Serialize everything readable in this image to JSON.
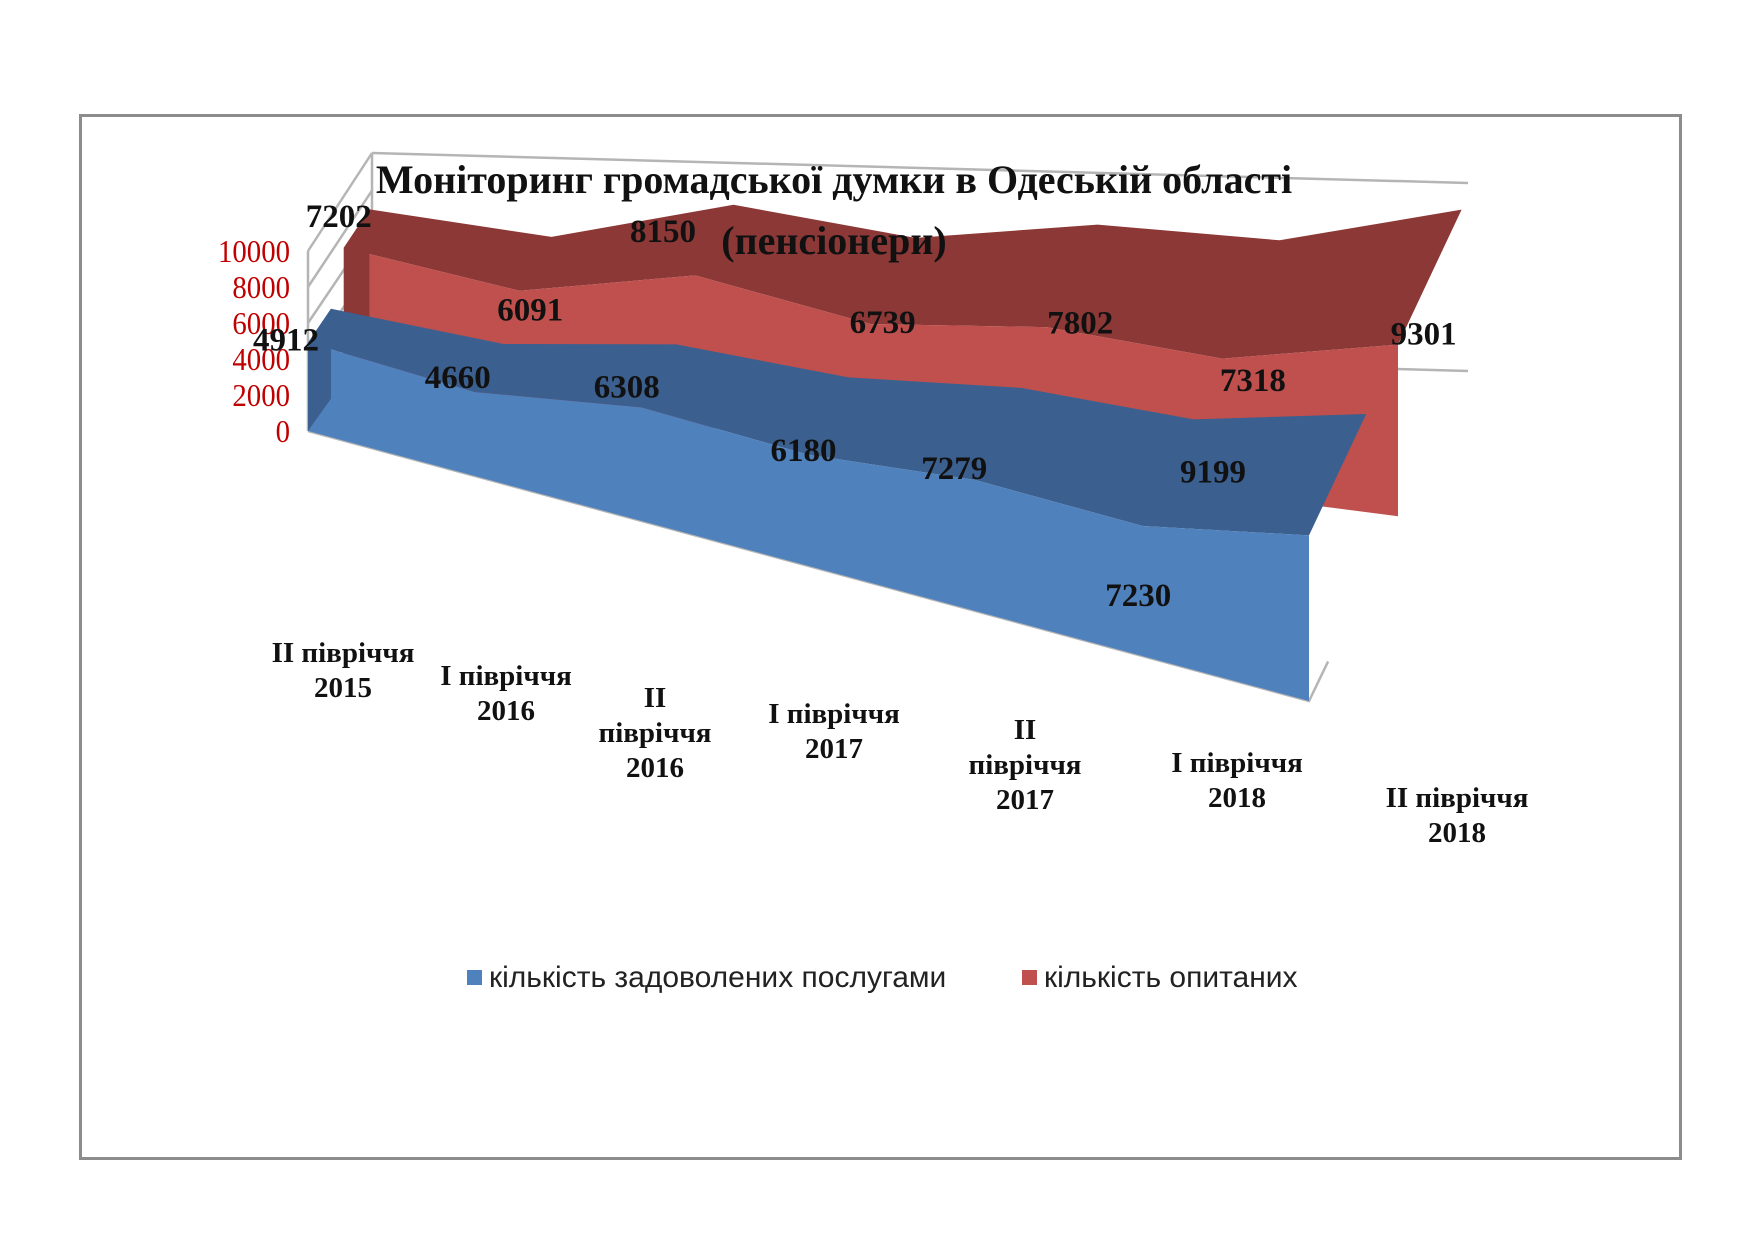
{
  "chart_data": {
    "type": "area",
    "title_lines": [
      "Моніторинг громадської думки в Одеській області",
      "(пенсіонери)"
    ],
    "categories": [
      [
        "II півріччя",
        "2015"
      ],
      [
        "I півріччя",
        "2016"
      ],
      [
        "II",
        "півріччя",
        "2016"
      ],
      [
        "I півріччя",
        "2017"
      ],
      [
        "II",
        "півріччя",
        "2017"
      ],
      [
        "I півріччя",
        "2018"
      ],
      [
        "II півріччя",
        "2018"
      ]
    ],
    "series": [
      {
        "name": "кількість задоволених послугами",
        "color": "#4f81bd",
        "top_color": "#3b5f8f",
        "values": [
          4912,
          4660,
          6308,
          6180,
          7279,
          7230,
          9199
        ]
      },
      {
        "name": "кількість опитаних",
        "color": "#c0504d",
        "top_color": "#8c3836",
        "values": [
          7202,
          6091,
          8150,
          6739,
          7802,
          7318,
          9301
        ]
      }
    ],
    "yticks": [
      0,
      2000,
      4000,
      6000,
      8000,
      10000
    ],
    "ylim": [
      0,
      10000
    ],
    "ytick_color": "#c00000",
    "legend_position": "bottom",
    "grid": true,
    "view": "3d"
  }
}
